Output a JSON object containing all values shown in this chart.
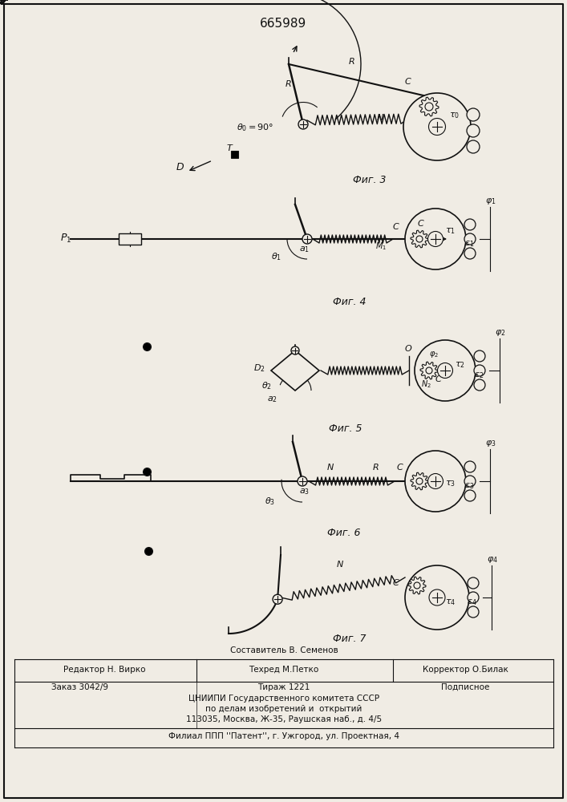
{
  "patent_number": "665989",
  "bg_color": "#f0ece4",
  "line_color": "#111111",
  "fig3_label": "Фиг. 3",
  "fig4_label": "Фиг. 4",
  "fig5_label": "Фиг. 5",
  "fig6_label": "Фиг. 6",
  "fig7_label": "Фиг. 7"
}
